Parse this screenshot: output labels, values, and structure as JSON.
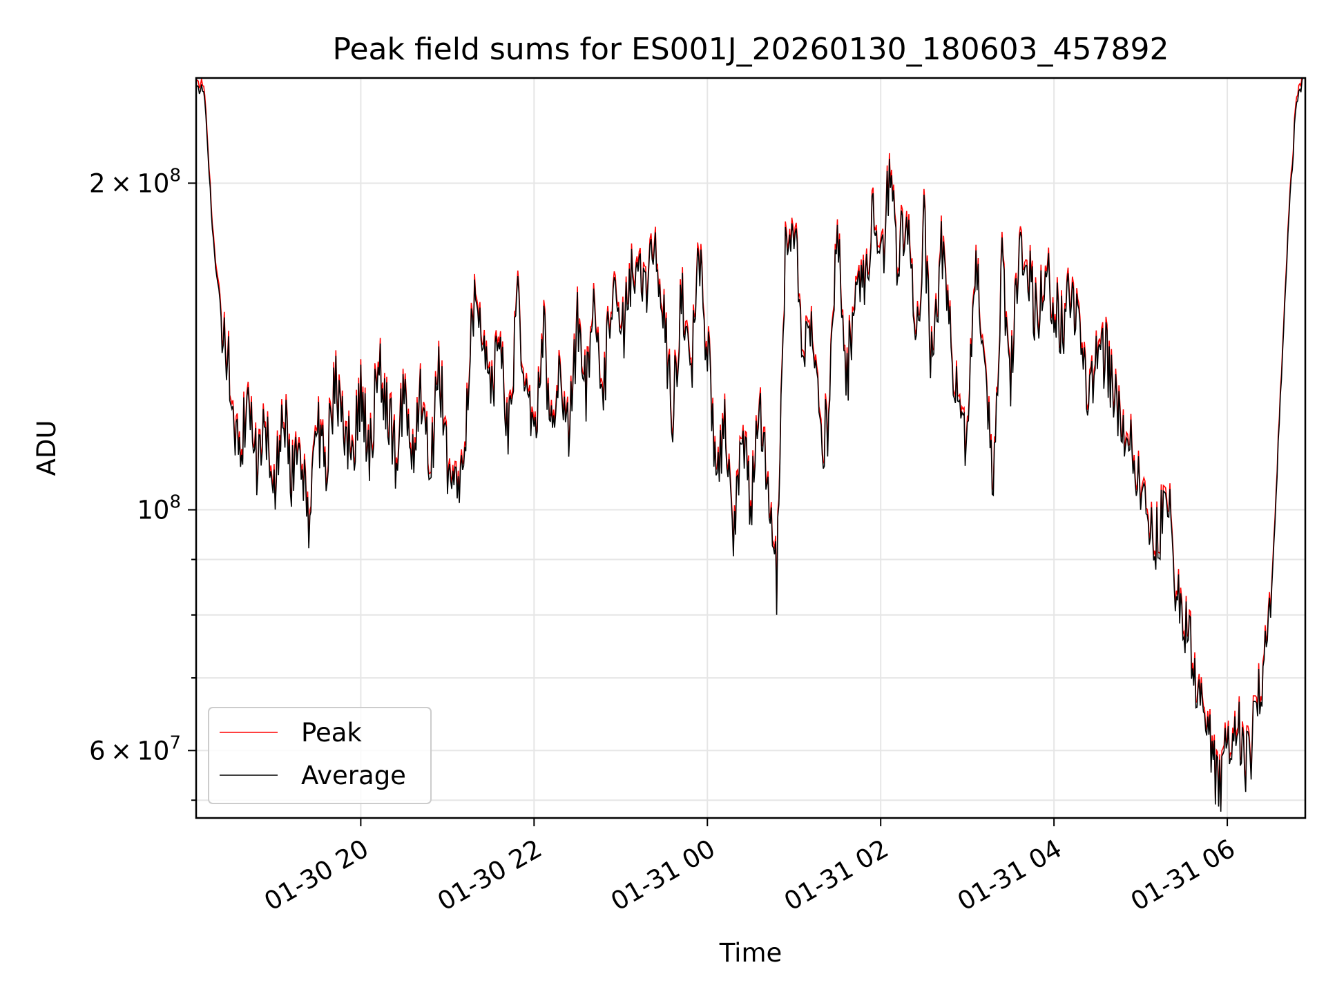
{
  "chart_data": {
    "type": "line",
    "title": "Peak field sums for ES001J_20260130_180603_457892",
    "xlabel": "Time",
    "ylabel": "ADU",
    "yscale": "log",
    "ylim": [
      52000000,
      250000000
    ],
    "xlim_hours": [
      18.1,
      30.9
    ],
    "grid": true,
    "legend_location": "lower left",
    "x_ticks": [
      {
        "label": "01-30 20",
        "hour": 20
      },
      {
        "label": "01-30 22",
        "hour": 22
      },
      {
        "label": "01-31 00",
        "hour": 24
      },
      {
        "label": "01-31 02",
        "hour": 26
      },
      {
        "label": "01-31 04",
        "hour": 28
      },
      {
        "label": "01-31 06",
        "hour": 30
      }
    ],
    "y_ticks": [
      {
        "value": 200000000,
        "mant": "2",
        "times": "×",
        "base": "10",
        "exp": "8"
      },
      {
        "value": 100000000,
        "mant": "",
        "times": "",
        "base": "10",
        "exp": "8"
      },
      {
        "value": 60000000,
        "mant": "6",
        "times": "×",
        "base": "10",
        "exp": "7"
      }
    ],
    "y_minor_ticks": [
      54000000,
      70000000,
      80000000,
      90000000
    ],
    "series": [
      {
        "name": "Peak",
        "color": "#ff0000"
      },
      {
        "name": "Average",
        "color": "#000000"
      }
    ],
    "x_hours": [
      18.1,
      18.2,
      18.3,
      18.4,
      18.5,
      18.6,
      18.7,
      18.8,
      18.9,
      19.0,
      19.1,
      19.2,
      19.3,
      19.4,
      19.5,
      19.6,
      19.7,
      19.8,
      19.9,
      20.0,
      20.1,
      20.2,
      20.3,
      20.4,
      20.5,
      20.6,
      20.7,
      20.8,
      20.9,
      21.0,
      21.1,
      21.2,
      21.3,
      21.4,
      21.5,
      21.6,
      21.7,
      21.8,
      21.9,
      22.0,
      22.1,
      22.2,
      22.3,
      22.4,
      22.5,
      22.6,
      22.7,
      22.8,
      22.9,
      23.0,
      23.1,
      23.2,
      23.3,
      23.4,
      23.5,
      23.6,
      23.7,
      23.8,
      23.9,
      24.0,
      24.1,
      24.2,
      24.3,
      24.4,
      24.5,
      24.6,
      24.7,
      24.8,
      24.9,
      25.0,
      25.1,
      25.2,
      25.3,
      25.4,
      25.5,
      25.6,
      25.7,
      25.8,
      25.9,
      26.0,
      26.1,
      26.2,
      26.3,
      26.4,
      26.5,
      26.6,
      26.7,
      26.8,
      26.9,
      27.0,
      27.1,
      27.2,
      27.3,
      27.4,
      27.5,
      27.6,
      27.7,
      27.8,
      27.9,
      28.0,
      28.1,
      28.2,
      28.3,
      28.4,
      28.5,
      28.6,
      28.7,
      28.8,
      28.9,
      29.0,
      29.1,
      29.2,
      29.3,
      29.4,
      29.5,
      29.6,
      29.7,
      29.8,
      29.9,
      30.0,
      30.1,
      30.2,
      30.3,
      30.4,
      30.5,
      30.6,
      30.7,
      30.8,
      30.9
    ],
    "average_values": [
      248000000,
      240000000,
      175000000,
      148000000,
      130000000,
      112000000,
      125000000,
      110000000,
      120000000,
      105000000,
      128000000,
      108000000,
      115000000,
      96000000,
      120000000,
      108000000,
      132000000,
      122000000,
      110000000,
      128000000,
      112000000,
      135000000,
      125000000,
      112000000,
      130000000,
      110000000,
      128000000,
      105000000,
      138000000,
      110000000,
      105000000,
      115000000,
      155000000,
      140000000,
      125000000,
      145000000,
      115000000,
      155000000,
      135000000,
      115000000,
      148000000,
      120000000,
      140000000,
      115000000,
      150000000,
      128000000,
      155000000,
      125000000,
      160000000,
      140000000,
      160000000,
      170000000,
      160000000,
      175000000,
      150000000,
      120000000,
      160000000,
      130000000,
      170000000,
      140000000,
      110000000,
      120000000,
      95000000,
      120000000,
      100000000,
      125000000,
      108000000,
      85000000,
      172000000,
      180000000,
      140000000,
      150000000,
      115000000,
      120000000,
      180000000,
      130000000,
      155000000,
      160000000,
      185000000,
      165000000,
      200000000,
      170000000,
      190000000,
      140000000,
      185000000,
      130000000,
      175000000,
      145000000,
      125000000,
      115000000,
      178000000,
      130000000,
      105000000,
      170000000,
      130000000,
      175000000,
      165000000,
      150000000,
      170000000,
      155000000,
      145000000,
      160000000,
      140000000,
      130000000,
      135000000,
      140000000,
      125000000,
      118000000,
      112000000,
      105000000,
      98000000,
      93000000,
      108000000,
      82000000,
      80000000,
      72000000,
      66000000,
      62000000,
      54000000,
      60000000,
      65000000,
      57000000,
      62000000,
      70000000,
      80000000,
      120000000,
      180000000,
      240000000,
      252000000
    ]
  },
  "legend": {
    "items": [
      {
        "label": "Peak",
        "color": "#ff0000"
      },
      {
        "label": "Average",
        "color": "#000000"
      }
    ]
  }
}
